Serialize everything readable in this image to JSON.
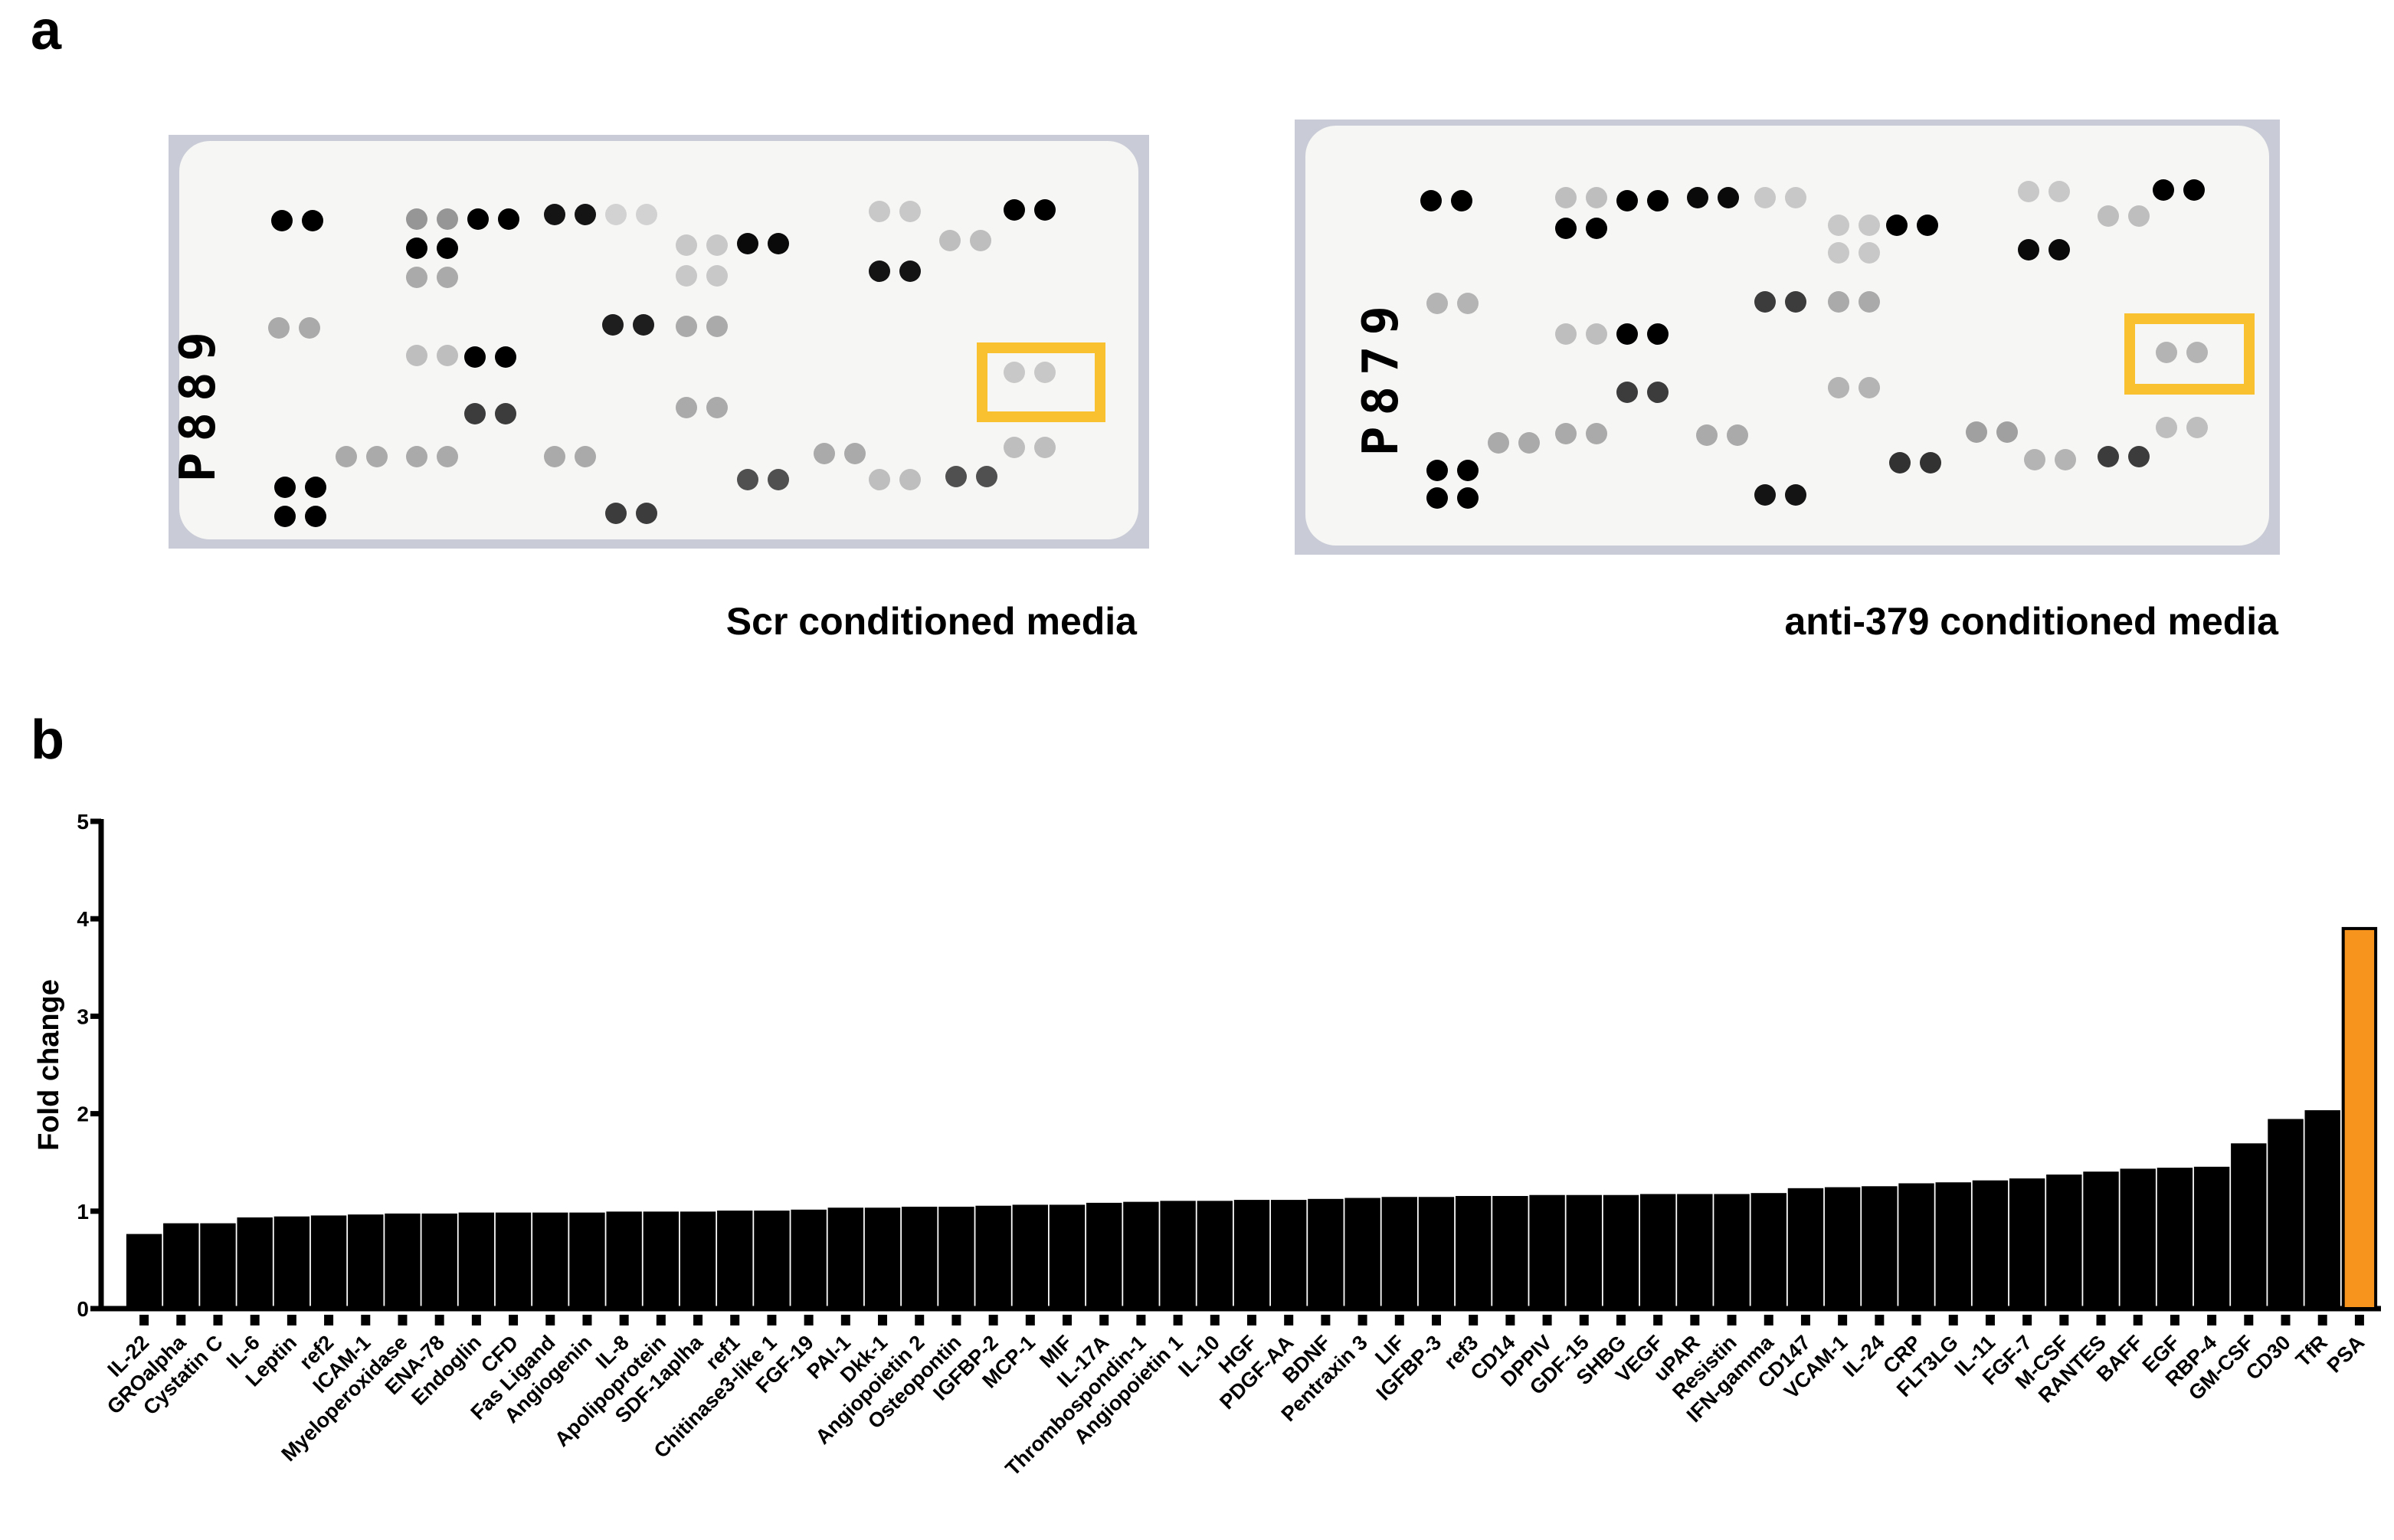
{
  "panels": {
    "a": {
      "label": "a",
      "membranes": [
        {
          "code": "P889",
          "caption": "Scr conditioned  media"
        },
        {
          "code": "P879",
          "caption": "anti-379 conditioned media"
        }
      ]
    },
    "b": {
      "label": "b"
    }
  },
  "chart_data": {
    "type": "bar",
    "y_label": "Fold change",
    "categories": [
      "IL-22",
      "GROalpha",
      "Cystatin C",
      "IL-6",
      "Leptin",
      "ref2",
      "ICAM-1",
      "Myeloperoxidase",
      "ENA-78",
      "Endoglin",
      "CFD",
      "Fas Ligand",
      "Angiogenin",
      "IL-8",
      "Apolipoprotein",
      "SDF-1aplha",
      "ref1",
      "Chitinase3-like 1",
      "FGF-19",
      "PAI-1",
      "Dkk-1",
      "Angiopoietin 2",
      "Osteopontin",
      "IGFBP-2",
      "MCP-1",
      "MIF",
      "IL-17A",
      "Thrombospondin-1",
      "Angiopoietin 1",
      "IL-10",
      "HGF",
      "PDGF-AA",
      "BDNF",
      "Pentraxin 3",
      "LIF",
      "IGFBP-3",
      "ref3",
      "CD14",
      "DPPIV",
      "GDF-15",
      "SHBG",
      "VEGF",
      "uPAR",
      "Resistin",
      "IFN-gamma",
      "CD147",
      "VCAM-1",
      "IL-24",
      "CRP",
      "FLT3LG",
      "IL-11",
      "FGF-7",
      "M-CSF",
      "RANTES",
      "BAFF",
      "EGF",
      "RBP-4",
      "GM-CSF",
      "CD30",
      "TfR",
      "PSA"
    ],
    "values": [
      0.75,
      0.86,
      0.86,
      0.92,
      0.93,
      0.94,
      0.95,
      0.96,
      0.96,
      0.97,
      0.97,
      0.97,
      0.97,
      0.98,
      0.98,
      0.98,
      0.99,
      0.99,
      1.0,
      1.02,
      1.02,
      1.03,
      1.03,
      1.04,
      1.05,
      1.05,
      1.07,
      1.08,
      1.09,
      1.09,
      1.1,
      1.1,
      1.11,
      1.12,
      1.13,
      1.13,
      1.14,
      1.14,
      1.15,
      1.15,
      1.15,
      1.16,
      1.16,
      1.16,
      1.17,
      1.22,
      1.23,
      1.24,
      1.27,
      1.28,
      1.3,
      1.32,
      1.36,
      1.39,
      1.42,
      1.43,
      1.44,
      1.68,
      1.93,
      2.02,
      3.9
    ],
    "colors": [
      "#000000",
      "#000000",
      "#000000",
      "#000000",
      "#000000",
      "#000000",
      "#000000",
      "#000000",
      "#000000",
      "#000000",
      "#000000",
      "#000000",
      "#000000",
      "#000000",
      "#000000",
      "#000000",
      "#000000",
      "#000000",
      "#000000",
      "#000000",
      "#000000",
      "#000000",
      "#000000",
      "#000000",
      "#000000",
      "#000000",
      "#000000",
      "#000000",
      "#000000",
      "#000000",
      "#000000",
      "#000000",
      "#000000",
      "#000000",
      "#000000",
      "#000000",
      "#000000",
      "#000000",
      "#000000",
      "#000000",
      "#000000",
      "#000000",
      "#000000",
      "#000000",
      "#000000",
      "#000000",
      "#000000",
      "#000000",
      "#000000",
      "#000000",
      "#000000",
      "#000000",
      "#000000",
      "#000000",
      "#000000",
      "#000000",
      "#000000",
      "#000000",
      "#000000",
      "#000000",
      "#f7941d"
    ],
    "ylim": [
      0,
      5
    ],
    "yticks": [
      0,
      1,
      2,
      3,
      4,
      5
    ]
  }
}
